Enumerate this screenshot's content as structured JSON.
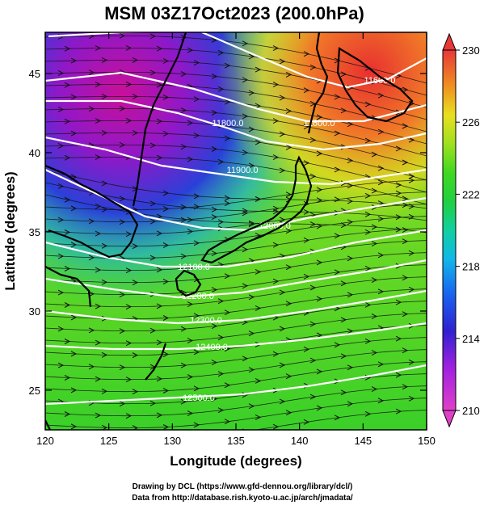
{
  "title": "MSM 03Z17Oct2023 (200.0hPa)",
  "x_axis": {
    "label": "Longitude (degrees)",
    "range": [
      120,
      150
    ],
    "ticks": [
      "120",
      "125",
      "130",
      "135",
      "140",
      "145",
      "150"
    ]
  },
  "y_axis": {
    "label": "Latitude  (degrees)",
    "range": [
      22.5,
      47.6
    ],
    "ticks": [
      "25",
      "30",
      "35",
      "40",
      "45"
    ]
  },
  "colorbar": {
    "range": [
      210,
      230
    ],
    "ticks": [
      "210",
      "214",
      "218",
      "222",
      "226",
      "230"
    ]
  },
  "contour_labels": [
    "11600.0",
    "11600.0",
    "11800.0",
    "11900.0",
    "12000.0",
    "12100.0",
    "12200.0",
    "12300.0",
    "12400.0",
    "12500.0"
  ],
  "credits": {
    "line1": "Drawing by DCL (https://www.gfd-dennou.org/library/dcl/)",
    "line2": "Data from http://database.rish.kyoto-u.ac.jp/arch/jmadata/"
  },
  "colors": {
    "cold_magenta": "#d0159a",
    "blue": "#1a4fe0",
    "cyan": "#19c8c8",
    "green": "#33d633",
    "lime": "#a6e61a",
    "warm_red": "#e8303a"
  }
}
